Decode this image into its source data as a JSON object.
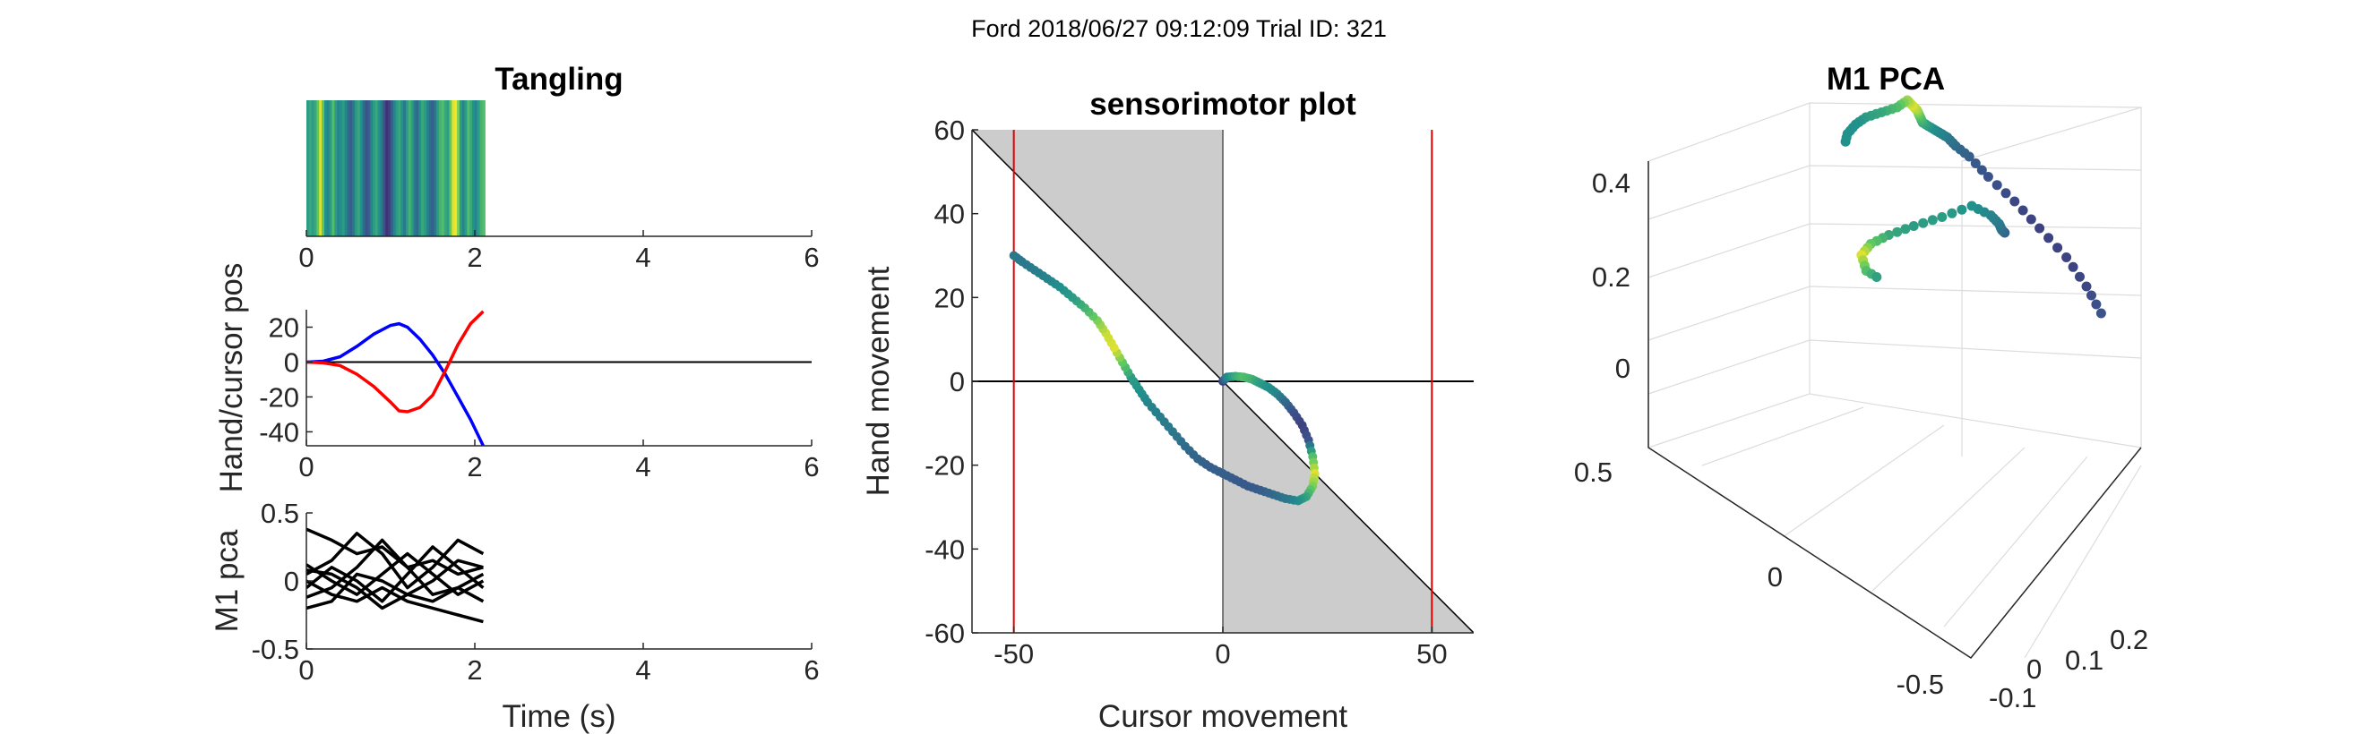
{
  "figure": {
    "suptitle": "Ford 2018/06/27 09:12:09 Trial ID: 321"
  },
  "chart_data": [
    {
      "id": "tangling",
      "type": "heatmap",
      "title": "Tangling",
      "xlabel": "",
      "ylabel": "",
      "xlim": [
        0,
        6
      ],
      "xticks": [
        0,
        2,
        4,
        6
      ],
      "extent_x": [
        0,
        2.12
      ],
      "colormap": "viridis",
      "values": [
        0.55,
        0.6,
        0.55,
        0.6,
        0.75,
        0.95,
        0.75,
        0.5,
        0.45,
        0.55,
        0.7,
        0.55,
        0.45,
        0.5,
        0.55,
        0.45,
        0.35,
        0.3,
        0.4,
        0.55,
        0.6,
        0.5,
        0.35,
        0.25,
        0.3,
        0.45,
        0.55,
        0.6,
        0.5,
        0.4,
        0.25,
        0.15,
        0.2,
        0.3,
        0.45,
        0.55,
        0.6,
        0.5,
        0.4,
        0.55,
        0.65,
        0.55,
        0.4,
        0.35,
        0.5,
        0.6,
        0.55,
        0.45,
        0.35,
        0.3,
        0.4,
        0.55,
        0.65,
        0.7,
        0.6,
        0.55,
        0.75,
        0.95,
        0.98,
        0.8,
        0.55,
        0.45,
        0.55,
        0.7,
        0.6,
        0.5,
        0.45,
        0.55,
        0.65,
        0.7
      ]
    },
    {
      "id": "hand-cursor",
      "type": "line",
      "title": "",
      "xlabel": "",
      "ylabel": "Hand/cursor pos",
      "xlim": [
        0,
        6
      ],
      "ylim": [
        -48,
        30
      ],
      "xticks": [
        0,
        2,
        4,
        6
      ],
      "yticks": [
        20,
        0,
        -20,
        -40
      ],
      "hline": 0,
      "series": [
        {
          "color": "#0000ff",
          "points": [
            [
              0,
              0
            ],
            [
              0.2,
              0.5
            ],
            [
              0.4,
              3
            ],
            [
              0.6,
              9
            ],
            [
              0.8,
              16
            ],
            [
              1.0,
              21
            ],
            [
              1.1,
              22
            ],
            [
              1.2,
              20
            ],
            [
              1.35,
              13
            ],
            [
              1.5,
              4
            ],
            [
              1.65,
              -7
            ],
            [
              1.8,
              -20
            ],
            [
              1.95,
              -33
            ],
            [
              2.1,
              -48
            ]
          ]
        },
        {
          "color": "#ff0000",
          "points": [
            [
              0,
              0
            ],
            [
              0.2,
              -0.5
            ],
            [
              0.4,
              -2
            ],
            [
              0.6,
              -7
            ],
            [
              0.8,
              -14
            ],
            [
              1.0,
              -23
            ],
            [
              1.1,
              -28
            ],
            [
              1.2,
              -28.5
            ],
            [
              1.35,
              -26
            ],
            [
              1.5,
              -19
            ],
            [
              1.65,
              -5
            ],
            [
              1.8,
              10
            ],
            [
              1.95,
              22
            ],
            [
              2.1,
              29
            ]
          ]
        }
      ]
    },
    {
      "id": "m1-pca",
      "type": "line",
      "title": "",
      "xlabel": "Time (s)",
      "ylabel": "M1 pca",
      "xlim": [
        0,
        6
      ],
      "ylim": [
        -0.5,
        0.5
      ],
      "xticks": [
        0,
        2,
        4,
        6
      ],
      "yticks": [
        0.5,
        0,
        -0.5
      ],
      "ytick_labels": [
        "0.5",
        "0",
        "-0.5"
      ],
      "series": [
        {
          "color": "#000000",
          "points": [
            [
              0,
              0.38
            ],
            [
              0.3,
              0.3
            ],
            [
              0.6,
              0.2
            ],
            [
              0.9,
              0.25
            ],
            [
              1.2,
              0.1
            ],
            [
              1.5,
              0.15
            ],
            [
              1.8,
              0.05
            ],
            [
              2.1,
              0.1
            ]
          ]
        },
        {
          "color": "#000000",
          "points": [
            [
              0,
              0.05
            ],
            [
              0.3,
              0.15
            ],
            [
              0.6,
              0.35
            ],
            [
              0.9,
              0.2
            ],
            [
              1.2,
              -0.05
            ],
            [
              1.5,
              0.1
            ],
            [
              1.8,
              0.3
            ],
            [
              2.1,
              0.2
            ]
          ]
        },
        {
          "color": "#000000",
          "points": [
            [
              0,
              -0.05
            ],
            [
              0.3,
              0.1
            ],
            [
              0.6,
              0.0
            ],
            [
              0.9,
              -0.15
            ],
            [
              1.2,
              0.05
            ],
            [
              1.5,
              0.25
            ],
            [
              1.8,
              0.1
            ],
            [
              2.1,
              -0.05
            ]
          ]
        },
        {
          "color": "#000000",
          "points": [
            [
              0,
              0.12
            ],
            [
              0.3,
              0.0
            ],
            [
              0.6,
              -0.1
            ],
            [
              0.9,
              0.05
            ],
            [
              1.2,
              0.2
            ],
            [
              1.5,
              0.05
            ],
            [
              1.8,
              -0.1
            ],
            [
              2.1,
              0.0
            ]
          ]
        },
        {
          "color": "#000000",
          "points": [
            [
              0,
              -0.12
            ],
            [
              0.3,
              -0.05
            ],
            [
              0.6,
              0.1
            ],
            [
              0.9,
              0.3
            ],
            [
              1.2,
              0.1
            ],
            [
              1.5,
              -0.1
            ],
            [
              1.8,
              -0.05
            ],
            [
              2.1,
              0.05
            ]
          ]
        },
        {
          "color": "#000000",
          "points": [
            [
              0,
              0.0
            ],
            [
              0.3,
              -0.1
            ],
            [
              0.6,
              -0.15
            ],
            [
              0.9,
              -0.05
            ],
            [
              1.2,
              -0.15
            ],
            [
              1.5,
              -0.2
            ],
            [
              1.8,
              -0.25
            ],
            [
              2.1,
              -0.3
            ]
          ]
        },
        {
          "color": "#000000",
          "points": [
            [
              0,
              -0.2
            ],
            [
              0.3,
              -0.15
            ],
            [
              0.6,
              0.05
            ],
            [
              0.9,
              0.0
            ],
            [
              1.2,
              -0.1
            ],
            [
              1.5,
              0.0
            ],
            [
              1.8,
              0.15
            ],
            [
              2.1,
              0.1
            ]
          ]
        },
        {
          "color": "#000000",
          "points": [
            [
              0,
              0.08
            ],
            [
              0.3,
              0.05
            ],
            [
              0.6,
              -0.05
            ],
            [
              0.9,
              -0.2
            ],
            [
              1.2,
              -0.1
            ],
            [
              1.5,
              -0.15
            ],
            [
              1.8,
              -0.05
            ],
            [
              2.1,
              -0.15
            ]
          ]
        }
      ]
    },
    {
      "id": "sensorimotor",
      "type": "scatter",
      "title": "sensorimotor plot",
      "xlabel": "Cursor movement",
      "ylabel": "Hand movement",
      "xlim": [
        -60,
        60
      ],
      "ylim": [
        -60,
        60
      ],
      "xticks": [
        -50,
        0,
        50
      ],
      "yticks": [
        60,
        40,
        20,
        0,
        -20,
        -40,
        -60
      ],
      "hline": 0,
      "vlines_red": [
        -50,
        50
      ],
      "shaded_regions": "two grey triangles between the diagonal y = -x and the y-axis",
      "colormap": "viridis",
      "points": [
        [
          0,
          0
        ],
        [
          1,
          1
        ],
        [
          3,
          1.2
        ],
        [
          5,
          1
        ],
        [
          7,
          0.5
        ],
        [
          9,
          -0.5
        ],
        [
          11,
          -1.5
        ],
        [
          13,
          -3
        ],
        [
          15,
          -5
        ],
        [
          17,
          -7.5
        ],
        [
          19,
          -10.5
        ],
        [
          20.5,
          -14
        ],
        [
          21.5,
          -18
        ],
        [
          22,
          -22
        ],
        [
          21.5,
          -25
        ],
        [
          20,
          -27.5
        ],
        [
          18,
          -28.5
        ],
        [
          15,
          -28
        ],
        [
          12,
          -27
        ],
        [
          9,
          -26
        ],
        [
          6,
          -25
        ],
        [
          3,
          -23.5
        ],
        [
          0,
          -22
        ],
        [
          -3,
          -20.5
        ],
        [
          -6,
          -18.5
        ],
        [
          -9,
          -15.5
        ],
        [
          -12,
          -12
        ],
        [
          -15,
          -8.5
        ],
        [
          -18,
          -5
        ],
        [
          -20,
          -2
        ],
        [
          -22,
          1
        ],
        [
          -24,
          4.5
        ],
        [
          -26,
          8
        ],
        [
          -28,
          11.5
        ],
        [
          -30,
          14.5
        ],
        [
          -33,
          17.5
        ],
        [
          -36,
          20
        ],
        [
          -39,
          22.5
        ],
        [
          -42,
          24.5
        ],
        [
          -45,
          26.5
        ],
        [
          -48,
          28.5
        ],
        [
          -50,
          30
        ]
      ],
      "color_values": [
        0.2,
        0.45,
        0.6,
        0.7,
        0.65,
        0.55,
        0.5,
        0.45,
        0.35,
        0.25,
        0.2,
        0.25,
        0.7,
        0.95,
        0.8,
        0.6,
        0.5,
        0.4,
        0.35,
        0.3,
        0.28,
        0.28,
        0.3,
        0.3,
        0.32,
        0.35,
        0.4,
        0.42,
        0.45,
        0.5,
        0.55,
        0.75,
        0.95,
        0.92,
        0.8,
        0.65,
        0.55,
        0.5,
        0.45,
        0.42,
        0.4,
        0.4
      ]
    },
    {
      "id": "m1-pca-3d",
      "type": "scatter",
      "title": "M1 PCA",
      "xlabel": "",
      "ylabel": "",
      "zlabel": "",
      "ztick_labels": [
        "0.4",
        "0.2",
        "0"
      ],
      "xtick_labels": [
        "0.5",
        "0"
      ],
      "ytick_labels": [
        "-0.5",
        "-0.1",
        "0",
        "0.1",
        "0.2"
      ],
      "colormap": "viridis",
      "trajectory_a": [
        [
          0.38,
          0.16,
          0.3
        ],
        [
          0.4,
          0.12,
          0.35
        ],
        [
          0.42,
          0.07,
          0.4
        ],
        [
          0.42,
          0.02,
          0.45
        ],
        [
          0.41,
          -0.02,
          0.5
        ],
        [
          0.38,
          -0.05,
          0.55
        ],
        [
          0.34,
          -0.06,
          0.6
        ],
        [
          0.3,
          -0.06,
          0.63
        ],
        [
          0.26,
          -0.05,
          0.66
        ],
        [
          0.22,
          -0.04,
          0.68
        ],
        [
          0.18,
          -0.03,
          0.7
        ],
        [
          0.14,
          -0.02,
          0.72
        ],
        [
          0.1,
          0.0,
          0.75
        ],
        [
          0.06,
          0.02,
          0.78
        ],
        [
          0.03,
          0.03,
          0.8
        ],
        [
          0.0,
          0.04,
          0.82
        ],
        [
          -0.03,
          0.04,
          0.8
        ],
        [
          -0.06,
          0.03,
          0.78
        ],
        [
          -0.09,
          0.02,
          0.76
        ],
        [
          -0.12,
          0.02,
          0.74
        ],
        [
          -0.16,
          0.03,
          0.72
        ],
        [
          -0.2,
          0.05,
          0.7
        ]
      ],
      "trajectory_b": [
        [
          0.16,
          0.12,
          0.5
        ],
        [
          0.12,
          0.14,
          0.52
        ],
        [
          0.08,
          0.16,
          0.55
        ],
        [
          0.04,
          0.17,
          0.58
        ],
        [
          0.0,
          0.16,
          0.6
        ],
        [
          -0.04,
          0.13,
          0.55
        ],
        [
          -0.06,
          0.09,
          0.5
        ],
        [
          -0.07,
          0.05,
          0.45
        ],
        [
          -0.06,
          0.01,
          0.4
        ],
        [
          -0.04,
          -0.02,
          0.35
        ],
        [
          -0.01,
          -0.03,
          0.3
        ],
        [
          0.02,
          -0.02,
          0.28
        ]
      ],
      "color_values_a": [
        0.25,
        0.22,
        0.2,
        0.2,
        0.22,
        0.25,
        0.3,
        0.35,
        0.4,
        0.45,
        0.5,
        0.6,
        0.7,
        0.85,
        0.95,
        0.85,
        0.7,
        0.6,
        0.55,
        0.5,
        0.5,
        0.5
      ],
      "color_values_b": [
        0.3,
        0.35,
        0.4,
        0.45,
        0.5,
        0.55,
        0.55,
        0.6,
        0.75,
        0.95,
        0.7,
        0.5
      ]
    }
  ]
}
